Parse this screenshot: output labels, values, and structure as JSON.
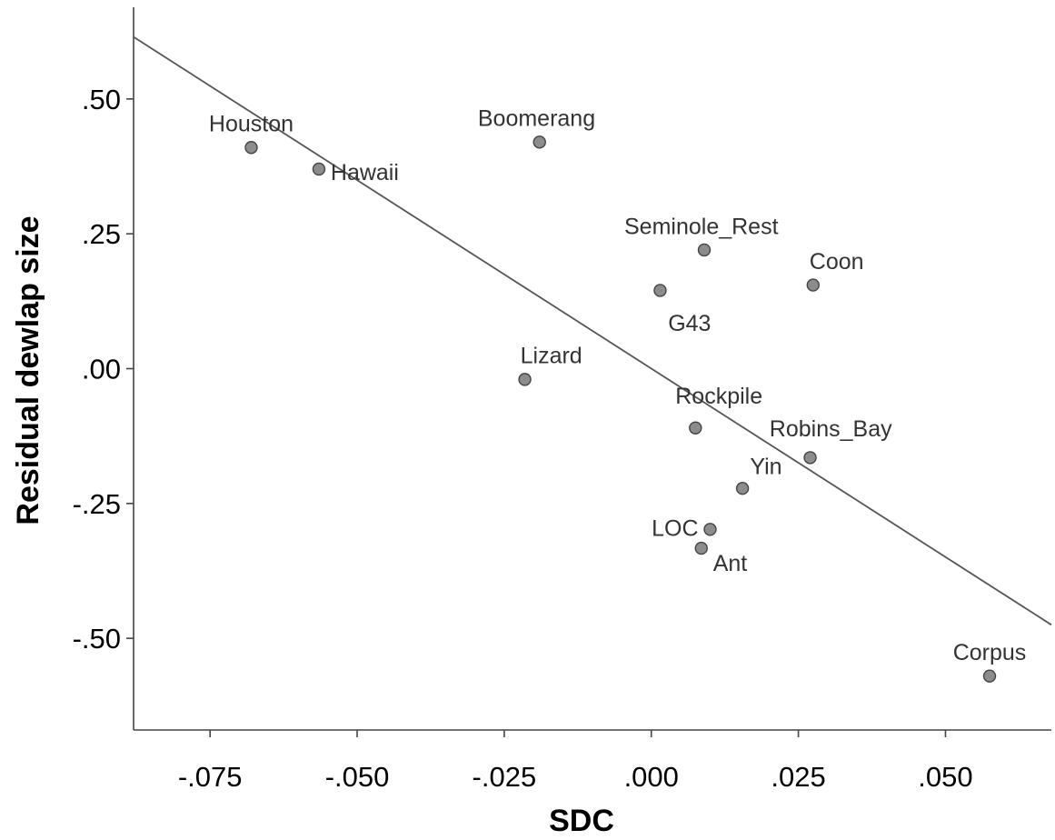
{
  "chart_data": {
    "type": "scatter",
    "title": "",
    "xlabel": "SDC",
    "ylabel": "Residual dewlap size",
    "xlim": [
      -0.088,
      0.068
    ],
    "ylim": [
      -0.67,
      0.67
    ],
    "x_ticks": [
      {
        "value": -0.075,
        "label": "-.075"
      },
      {
        "value": -0.05,
        "label": "-.050"
      },
      {
        "value": -0.025,
        "label": "-.025"
      },
      {
        "value": 0.0,
        "label": ".000"
      },
      {
        "value": 0.025,
        "label": ".025"
      },
      {
        "value": 0.05,
        "label": ".050"
      }
    ],
    "y_ticks": [
      {
        "value": 0.5,
        "label": ".50"
      },
      {
        "value": 0.25,
        "label": ".25"
      },
      {
        "value": 0.0,
        "label": ".00"
      },
      {
        "value": -0.25,
        "label": "-.25"
      },
      {
        "value": -0.5,
        "label": "-.50"
      }
    ],
    "grid": false,
    "fit_line": {
      "x": [
        -0.088,
        0.068
      ],
      "y": [
        0.615,
        -0.475
      ]
    },
    "points": [
      {
        "label": "Houston",
        "x": -0.068,
        "y": 0.41,
        "lx": -0.068,
        "ly": 0.455,
        "anchor": "middle"
      },
      {
        "label": "Hawaii",
        "x": -0.0565,
        "y": 0.37,
        "lx": -0.0545,
        "ly": 0.365,
        "anchor": "start"
      },
      {
        "label": "Boomerang",
        "x": -0.019,
        "y": 0.42,
        "lx": -0.0195,
        "ly": 0.465,
        "anchor": "middle"
      },
      {
        "label": "Seminole_Rest",
        "x": 0.009,
        "y": 0.22,
        "lx": 0.0085,
        "ly": 0.265,
        "anchor": "middle"
      },
      {
        "label": "Coon",
        "x": 0.0275,
        "y": 0.155,
        "lx": 0.0315,
        "ly": 0.2,
        "anchor": "middle"
      },
      {
        "label": "G43",
        "x": 0.0015,
        "y": 0.145,
        "lx": 0.0065,
        "ly": 0.085,
        "anchor": "middle"
      },
      {
        "label": "Lizard",
        "x": -0.0215,
        "y": -0.02,
        "lx": -0.017,
        "ly": 0.025,
        "anchor": "middle"
      },
      {
        "label": "Rockpile",
        "x": 0.0075,
        "y": -0.11,
        "lx": 0.0115,
        "ly": -0.05,
        "anchor": "middle"
      },
      {
        "label": "Robins_Bay",
        "x": 0.027,
        "y": -0.165,
        "lx": 0.0305,
        "ly": -0.11,
        "anchor": "middle"
      },
      {
        "label": "Yin",
        "x": 0.0155,
        "y": -0.222,
        "lx": 0.0195,
        "ly": -0.18,
        "anchor": "middle"
      },
      {
        "label": "LOC",
        "x": 0.01,
        "y": -0.298,
        "lx": 0.008,
        "ly": -0.295,
        "anchor": "end"
      },
      {
        "label": "Ant",
        "x": 0.0085,
        "y": -0.333,
        "lx": 0.0105,
        "ly": -0.36,
        "anchor": "start"
      },
      {
        "label": "Corpus",
        "x": 0.0575,
        "y": -0.57,
        "lx": 0.0575,
        "ly": -0.525,
        "anchor": "middle"
      }
    ]
  }
}
